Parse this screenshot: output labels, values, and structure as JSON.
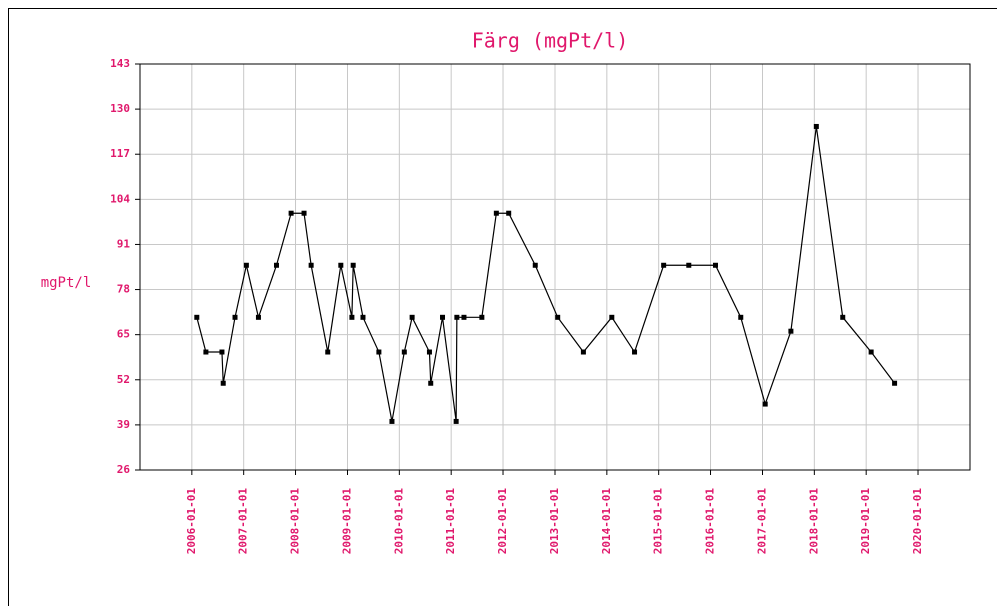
{
  "chart_data": {
    "type": "line",
    "title": "Färg (mgPt/l)",
    "y_label": "mgPt/l",
    "x": [
      "2006-02-05",
      "2006-04-10",
      "2006-08-01",
      "2006-08-10",
      "2006-11-01",
      "2007-01-20",
      "2007-04-15",
      "2007-08-20",
      "2007-12-01",
      "2008-03-01",
      "2008-04-20",
      "2008-08-15",
      "2008-11-15",
      "2009-02-01",
      "2009-02-10",
      "2009-04-20",
      "2009-08-10",
      "2009-11-10",
      "2010-02-05",
      "2010-04-01",
      "2010-08-01",
      "2010-08-10",
      "2010-11-01",
      "2011-02-05",
      "2011-02-10",
      "2011-04-01",
      "2011-08-05",
      "2011-11-15",
      "2012-02-10",
      "2012-08-15",
      "2013-01-20",
      "2013-07-20",
      "2014-02-05",
      "2014-07-15",
      "2015-02-05",
      "2015-08-01",
      "2016-02-05",
      "2016-08-01",
      "2017-01-20",
      "2017-07-20",
      "2018-01-15",
      "2018-07-20",
      "2019-02-05",
      "2019-07-20"
    ],
    "series": [
      {
        "name": "Färg",
        "color": "#000000",
        "values": [
          70,
          60,
          60,
          51,
          70,
          85,
          70,
          85,
          100,
          100,
          85,
          60,
          85,
          70,
          85,
          70,
          60,
          40,
          60,
          70,
          60,
          51,
          70,
          40,
          70,
          70,
          70,
          100,
          100,
          85,
          70,
          60,
          70,
          60,
          85,
          85,
          85,
          70,
          45,
          66,
          125,
          70,
          60,
          51
        ]
      }
    ],
    "xlim": [
      "2005-01-01",
      "2021-01-01"
    ],
    "xticks": [
      "2006-01-01",
      "2007-01-01",
      "2008-01-01",
      "2009-01-01",
      "2010-01-01",
      "2011-01-01",
      "2012-01-01",
      "2013-01-01",
      "2014-01-01",
      "2015-01-01",
      "2016-01-01",
      "2017-01-01",
      "2018-01-01",
      "2019-01-01",
      "2020-01-01"
    ],
    "ylim": [
      26,
      143
    ],
    "yticks": [
      26,
      39,
      52,
      65,
      78,
      91,
      104,
      117,
      130,
      143
    ],
    "grid": true,
    "label_color": "#e0186c"
  }
}
